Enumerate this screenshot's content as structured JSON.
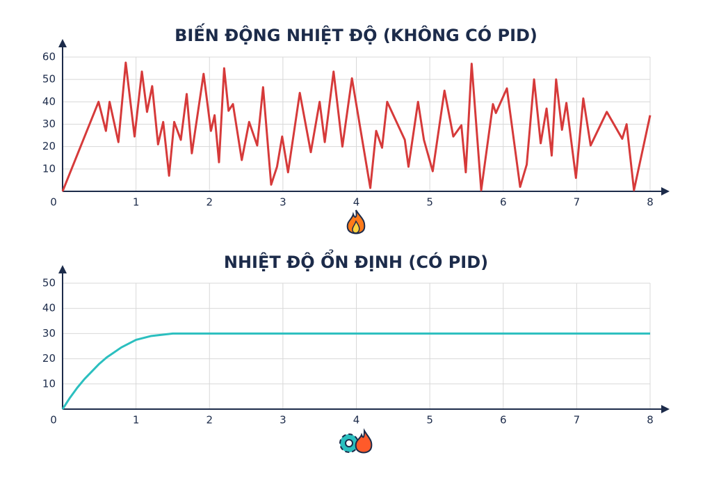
{
  "chart_data": [
    {
      "type": "line",
      "title": "BIẾN ĐỘNG NHIỆT ĐỘ (KHÔNG CÓ PID)",
      "x": [
        0,
        0.49,
        0.59,
        0.64,
        0.76,
        0.86,
        0.98,
        1.08,
        1.15,
        1.22,
        1.3,
        1.37,
        1.45,
        1.52,
        1.61,
        1.69,
        1.76,
        1.92,
        2.02,
        2.07,
        2.13,
        2.2,
        2.26,
        2.32,
        2.44,
        2.54,
        2.65,
        2.73,
        2.84,
        2.92,
        2.99,
        3.07,
        3.23,
        3.38,
        3.5,
        3.57,
        3.69,
        3.81,
        3.94,
        4.19,
        4.27,
        4.35,
        4.42,
        4.66,
        4.71,
        4.84,
        4.92,
        5.04,
        5.2,
        5.32,
        5.43,
        5.49,
        5.57,
        5.7,
        5.86,
        5.9,
        6.05,
        6.23,
        6.32,
        6.42,
        6.51,
        6.59,
        6.66,
        6.72,
        6.8,
        6.86,
        6.99,
        7.09,
        7.19,
        7.41,
        7.62,
        7.68,
        7.78,
        8.0
      ],
      "series": [
        {
          "name": "Nhiệt độ",
          "color": "#d63a3a",
          "values": [
            0,
            40,
            27,
            40,
            22,
            57.5,
            24.5,
            53.5,
            35.5,
            47,
            21,
            31,
            7,
            31,
            23,
            43.5,
            17,
            52.5,
            27,
            34,
            13,
            55,
            36,
            39,
            14,
            31,
            20.5,
            46.5,
            3,
            11,
            24.5,
            8.5,
            44,
            17.5,
            40,
            22,
            53.5,
            20,
            50.5,
            1.5,
            27,
            19.5,
            40,
            23,
            11,
            40,
            23,
            9,
            45,
            24.5,
            29.5,
            8.5,
            57,
            0.5,
            39,
            35,
            46,
            2,
            12,
            50,
            21.5,
            37,
            16,
            50,
            27.5,
            39.5,
            6,
            41.5,
            20.5,
            35.5,
            23.5,
            30,
            0.5,
            34
          ]
        }
      ],
      "xlim": [
        0,
        8
      ],
      "xticks": [
        0,
        1,
        2,
        3,
        4,
        5,
        6,
        7,
        8
      ],
      "ylim": [
        0,
        60
      ],
      "yticks": [
        10,
        20,
        30,
        40,
        50,
        60
      ],
      "grid": true
    },
    {
      "type": "line",
      "title": "NHIỆT ĐỘ ỔN ĐỊNH (CÓ PID)",
      "x": [
        0,
        0.1,
        0.2,
        0.3,
        0.4,
        0.5,
        0.6,
        0.8,
        1.0,
        1.2,
        1.5,
        2,
        3,
        4,
        5,
        6,
        7,
        8
      ],
      "series": [
        {
          "name": "Nhiệt độ",
          "color": "#2bbfbf",
          "values": [
            0,
            4.5,
            8.5,
            12,
            15,
            18,
            20.5,
            24.5,
            27.5,
            29,
            30,
            30,
            30,
            30,
            30,
            30,
            30,
            30
          ]
        }
      ],
      "xlim": [
        0,
        8
      ],
      "xticks": [
        0,
        1,
        2,
        3,
        4,
        5,
        6,
        7,
        8
      ],
      "ylim": [
        0,
        50
      ],
      "yticks": [
        10,
        20,
        30,
        40,
        50
      ],
      "grid": true
    }
  ]
}
